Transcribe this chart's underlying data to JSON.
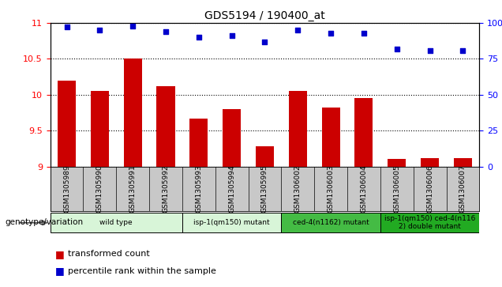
{
  "title": "GDS5194 / 190400_at",
  "samples": [
    "GSM1305989",
    "GSM1305990",
    "GSM1305991",
    "GSM1305992",
    "GSM1305993",
    "GSM1305994",
    "GSM1305995",
    "GSM1306002",
    "GSM1306003",
    "GSM1306004",
    "GSM1306005",
    "GSM1306006",
    "GSM1306007"
  ],
  "bar_values": [
    10.2,
    10.05,
    10.5,
    10.12,
    9.67,
    9.8,
    9.28,
    10.05,
    9.82,
    9.95,
    9.1,
    9.12,
    9.12
  ],
  "scatter_values": [
    97,
    95,
    98,
    94,
    90,
    91,
    87,
    95,
    93,
    93,
    82,
    81,
    81
  ],
  "ylim_left": [
    9,
    11
  ],
  "ylim_right": [
    0,
    100
  ],
  "yticks_left": [
    9,
    9.5,
    10,
    10.5,
    11
  ],
  "yticks_right": [
    0,
    25,
    50,
    75,
    100
  ],
  "bar_color": "#cc0000",
  "scatter_color": "#0000cc",
  "bar_baseline": 9,
  "groups": [
    {
      "label": "wild type",
      "start": 0,
      "end": 3,
      "color": "#d8f5d8"
    },
    {
      "label": "isp-1(qm150) mutant",
      "start": 4,
      "end": 6,
      "color": "#d8f5d8"
    },
    {
      "label": "ced-4(n1162) mutant",
      "start": 7,
      "end": 9,
      "color": "#44bb44"
    },
    {
      "label": "isp-1(qm150) ced-4(n116\n2) double mutant",
      "start": 10,
      "end": 12,
      "color": "#22aa22"
    }
  ],
  "legend_bar_label": "transformed count",
  "legend_scatter_label": "percentile rank within the sample",
  "genotype_label": "genotype/variation",
  "xtick_bg": "#c8c8c8",
  "plot_bg": "#ffffff"
}
